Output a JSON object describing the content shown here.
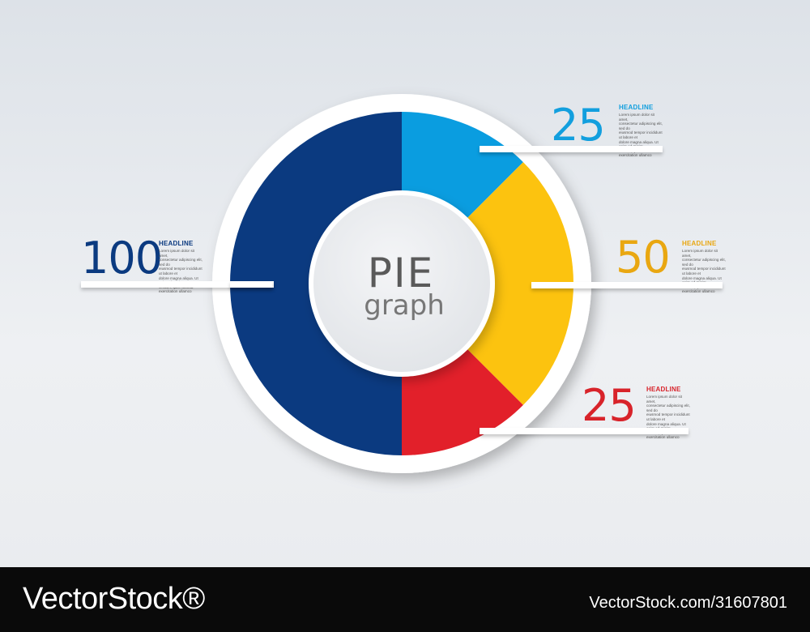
{
  "chart_data": {
    "type": "pie",
    "categories": [
      "100",
      "25",
      "50",
      "25"
    ],
    "values": [
      100,
      25,
      50,
      25
    ],
    "colors": [
      "#0b3a80",
      "#0a9de0",
      "#fcc30f",
      "#e2202a"
    ],
    "title": "PIE",
    "subtitle": "graph"
  },
  "callouts": [
    {
      "value": "25",
      "headline": "HEADLINE",
      "color": "#129fde",
      "body": "Lorem ipsum dolor sit amet,\nconsectetur adipiscing elit, sed do\neiusmod tempor incididunt ut labore et\ndolore magna aliqua. Ut enim ad minim\nveniam, quis nostrud exercitation ullamco"
    },
    {
      "value": "50",
      "headline": "HEADLINE",
      "color": "#e9a711",
      "body": "Lorem ipsum dolor sit amet,\nconsectetur adipiscing elit, sed do\neiusmod tempor incididunt ut labore et\ndolore magna aliqua. Ut enim ad minim\nveniam, quis nostrud exercitation ullamco"
    },
    {
      "value": "25",
      "headline": "HEADLINE",
      "color": "#d8232a",
      "body": "Lorem ipsum dolor sit amet,\nconsectetur adipiscing elit, sed do\neiusmod tempor incididunt ut labore et\ndolore magna aliqua. Ut enim ad minim\nveniam, quis nostrud exercitation ullamco"
    },
    {
      "value": "100",
      "headline": "HEADLINE",
      "color": "#0b3a80",
      "body": "Lorem ipsum dolor sit amet,\nconsectetur adipiscing elit, sed do\neiusmod tempor incididunt ut labore et\ndolore magna aliqua. Ut enim ad minim\nveniam, quis nostrud exercitation ullamco"
    }
  ],
  "footer": {
    "logo": "VectorStock®",
    "image_id": "VectorStock.com/31607801"
  }
}
